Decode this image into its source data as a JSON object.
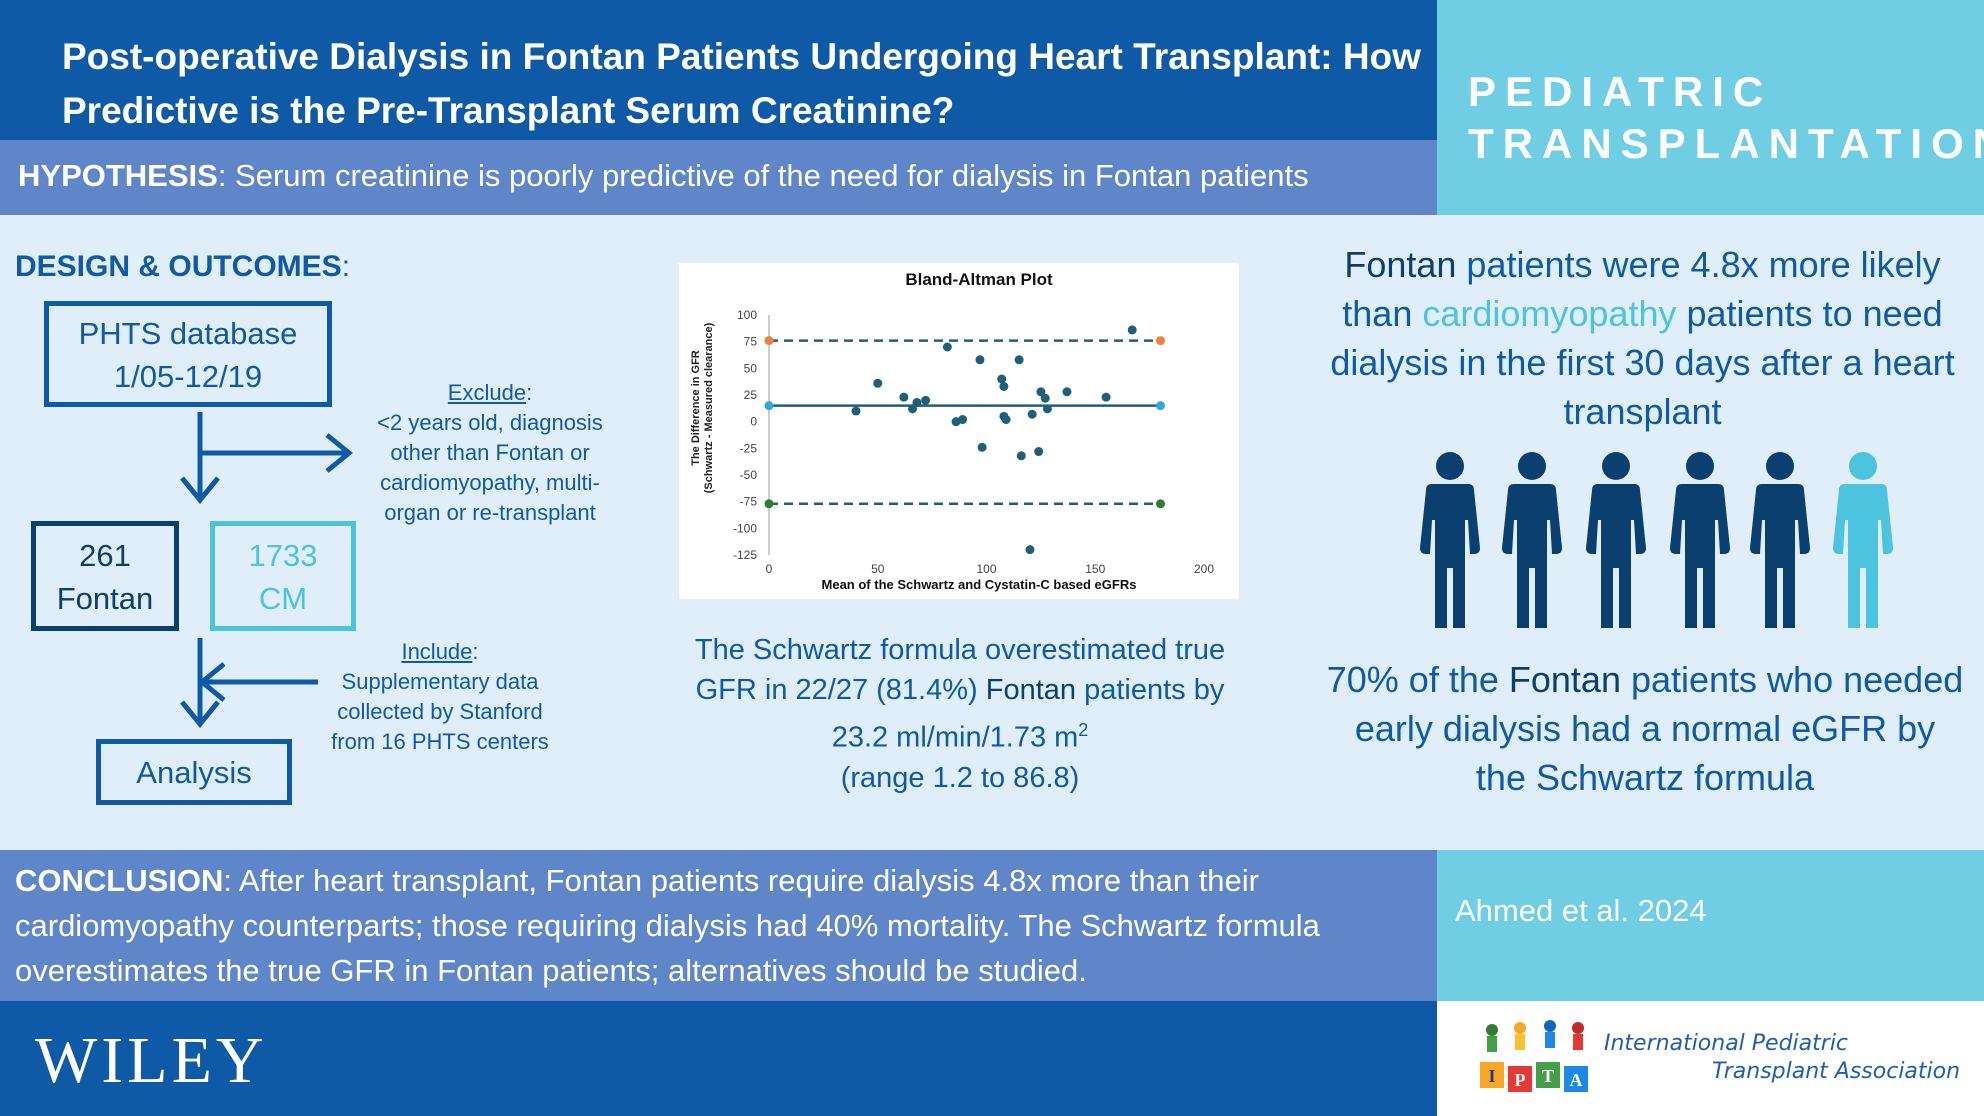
{
  "header": {
    "title": "Post-operative Dialysis in Fontan Patients Undergoing Heart Transplant: How Predictive is the Pre-Transplant Serum Creatinine?",
    "journal_line1": "PEDIATRIC",
    "journal_line2": "TRANSPLANTATION"
  },
  "hypothesis": {
    "label": "HYPOTHESIS",
    "text": ": Serum creatinine is poorly predictive of the need for dialysis in Fontan patients"
  },
  "design": {
    "title": "DESIGN & OUTCOMES",
    "title_colon": ":",
    "phts_line1": "PHTS database",
    "phts_line2": "1/05-12/19",
    "exclude_label": "Exclude",
    "exclude_colon": ":",
    "exclude_text": "<2 years old, diagnosis other than Fontan or cardiomyopathy, multi-organ or re-transplant",
    "fontan_count": "261",
    "fontan_label": "Fontan",
    "cm_count": "1733",
    "cm_label": "CM",
    "include_label": "Include",
    "include_colon": ":",
    "include_text": "Supplementary data collected by Stanford from 16 PHTS centers",
    "analysis_label": "Analysis"
  },
  "chart_data": {
    "type": "scatter",
    "title": "Bland-Altman Plot",
    "xlabel": "Mean of the Schwartz and Cystatin-C based eGFRs",
    "ylabel_line1": "The Difference in GFR",
    "ylabel_line2": "(Schwartz - Measured clearance)",
    "xlim": [
      0,
      200
    ],
    "ylim": [
      -125,
      100
    ],
    "x_ticks": [
      "0",
      "50",
      "100",
      "150",
      "200"
    ],
    "y_ticks": [
      "100",
      "75",
      "50",
      "25",
      "0",
      "-25",
      "-50",
      "-75",
      "-100",
      "-125"
    ],
    "mean_line": 15,
    "upper_limit": 76,
    "lower_limit": -77,
    "points": [
      {
        "x": 40,
        "y": 10
      },
      {
        "x": 50,
        "y": 36
      },
      {
        "x": 62,
        "y": 23
      },
      {
        "x": 66,
        "y": 12
      },
      {
        "x": 68,
        "y": 18
      },
      {
        "x": 72,
        "y": 20
      },
      {
        "x": 82,
        "y": 70
      },
      {
        "x": 86,
        "y": 0
      },
      {
        "x": 89,
        "y": 2
      },
      {
        "x": 97,
        "y": 58
      },
      {
        "x": 98,
        "y": -24
      },
      {
        "x": 107,
        "y": 40
      },
      {
        "x": 108,
        "y": 33
      },
      {
        "x": 108,
        "y": 5
      },
      {
        "x": 109,
        "y": 2
      },
      {
        "x": 115,
        "y": 58
      },
      {
        "x": 116,
        "y": -32
      },
      {
        "x": 121,
        "y": 7
      },
      {
        "x": 124,
        "y": -28
      },
      {
        "x": 125,
        "y": 28
      },
      {
        "x": 127,
        "y": 22
      },
      {
        "x": 128,
        "y": 12
      },
      {
        "x": 137,
        "y": 28
      },
      {
        "x": 155,
        "y": 23
      },
      {
        "x": 167,
        "y": 86
      },
      {
        "x": 120,
        "y": -120
      }
    ]
  },
  "chart_caption": {
    "part1": "The Schwartz formula overestimated true GFR in 22/27 (81.4%) ",
    "fontan": "Fontan",
    "part2": " patients by 23.2 ml/min/1.73 m",
    "sup": "2",
    "part3": "(range 1.2 to 86.8)"
  },
  "stats": {
    "top_fontan": "Fontan",
    "top_part1": " patients were 4.8x more likely than ",
    "top_cm": "cardiomyopathy",
    "top_part2": " patients to need dialysis in the first 30 days after a heart transplant",
    "bottom_part1": "70% of the ",
    "bottom_fontan": "Fontan",
    "bottom_part2": " patients who needed early dialysis had a normal eGFR by the Schwartz formula"
  },
  "conclusion": {
    "label": "CONCLUSION",
    "text": ": After heart transplant, Fontan patients require dialysis 4.8x more than their cardiomyopathy counterparts; those requiring dialysis had 40% mortality. The Schwartz formula overestimates the true GFR in Fontan patients; alternatives should be studied."
  },
  "citation": "Ahmed et al. 2024",
  "footer": {
    "publisher": "WILEY",
    "ipta_line1": "International Pediatric",
    "ipta_line2": "Transplant Association",
    "ipta_letters": [
      "I",
      "P",
      "T",
      "A"
    ]
  },
  "colors": {
    "primary_blue": "#0f5aa6",
    "dark_navy": "#0b3f70",
    "cyan": "#4cc3df",
    "bar_blue": "#5e86c8",
    "background": "#dfeef8"
  }
}
